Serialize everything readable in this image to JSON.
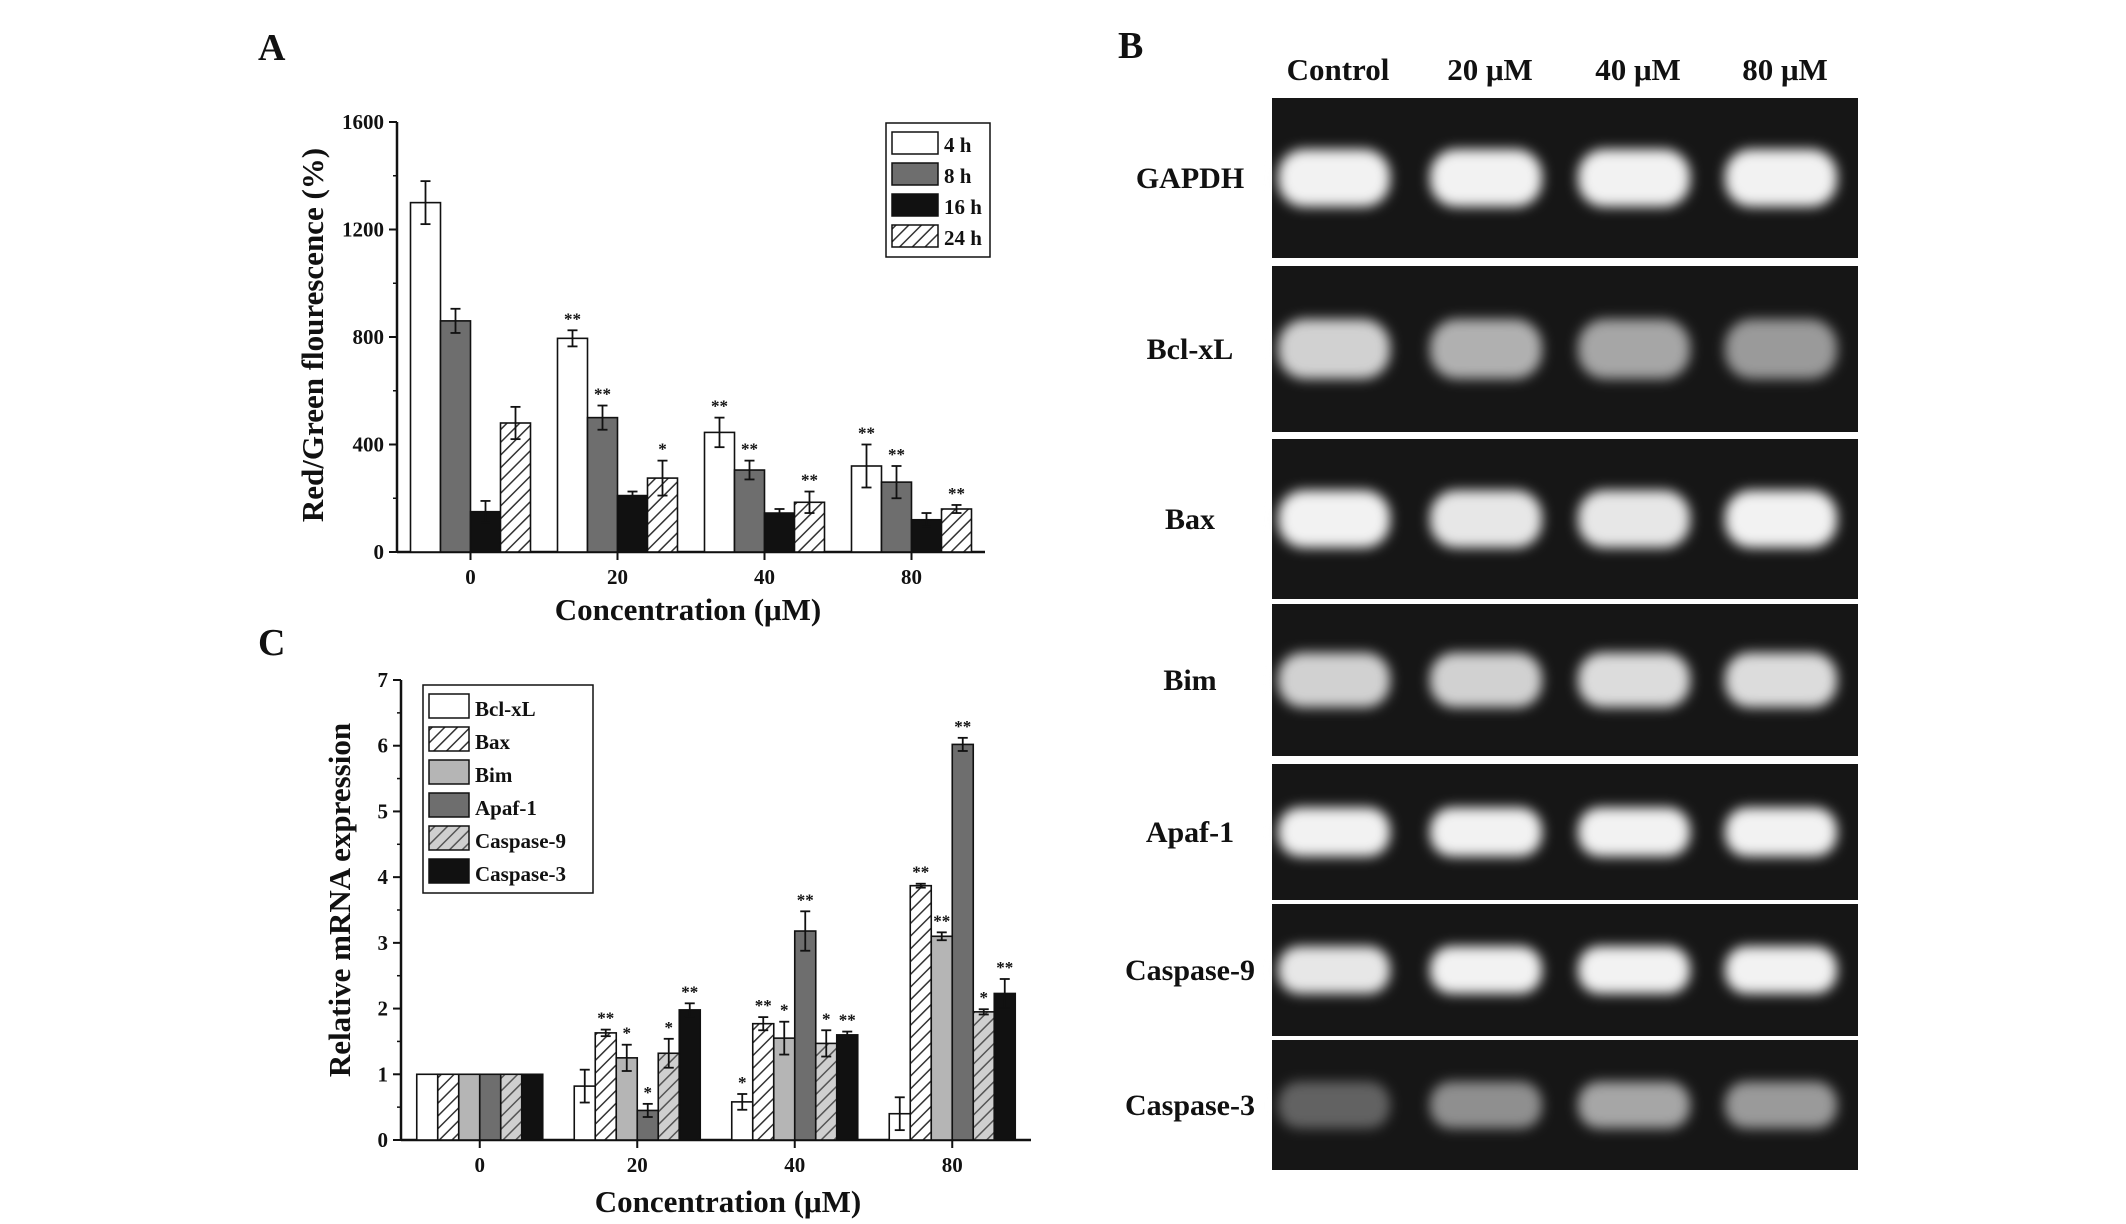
{
  "figure": {
    "panel_labels": {
      "a": "A",
      "b": "B",
      "c": "C"
    }
  },
  "colors": {
    "white_bar": "#ffffff",
    "dark_gray_bar": "#6e6e6e",
    "black_bar": "#111111",
    "light_gray_bar": "#b5b5b5",
    "hatch": "#333333",
    "gel_background": "#161616",
    "gel_band": "#f2f2f2"
  },
  "chart_data": [
    {
      "id": "panel-a",
      "type": "bar",
      "title": "",
      "xlabel": "Concentration (μM)",
      "ylabel": "Red/Green flourescence (%)",
      "ylim": [
        0,
        1600
      ],
      "yticks": [
        0,
        400,
        800,
        1200,
        1600
      ],
      "categories": [
        "0",
        "20",
        "40",
        "80"
      ],
      "legend_position": "top-right",
      "series": [
        {
          "name": "4 h",
          "fill": "white",
          "values": [
            1300,
            795,
            445,
            320
          ],
          "errors": [
            80,
            30,
            55,
            80
          ],
          "sig": [
            "",
            "**",
            "**",
            "**"
          ]
        },
        {
          "name": "8 h",
          "fill": "dark",
          "values": [
            860,
            500,
            305,
            260
          ],
          "errors": [
            45,
            45,
            35,
            60
          ],
          "sig": [
            "",
            "**",
            "**",
            "**"
          ]
        },
        {
          "name": "16 h",
          "fill": "black",
          "values": [
            150,
            210,
            145,
            120
          ],
          "errors": [
            40,
            15,
            15,
            25
          ],
          "sig": [
            "",
            "",
            "",
            ""
          ]
        },
        {
          "name": "24 h",
          "fill": "hatch",
          "values": [
            480,
            275,
            185,
            160
          ],
          "errors": [
            60,
            65,
            40,
            15
          ],
          "sig": [
            "",
            "*",
            "**",
            "**"
          ]
        }
      ]
    },
    {
      "id": "panel-c",
      "type": "bar",
      "title": "",
      "xlabel": "Concentration (μM)",
      "ylabel": "Relative mRNA expression",
      "ylim": [
        0,
        7
      ],
      "yticks": [
        0,
        1,
        2,
        3,
        4,
        5,
        6,
        7
      ],
      "categories": [
        "0",
        "20",
        "40",
        "80"
      ],
      "legend_position": "top-left",
      "series": [
        {
          "name": "Bcl-xL",
          "fill": "white",
          "values": [
            1,
            0.82,
            0.58,
            0.4
          ],
          "errors": [
            0,
            0.25,
            0.12,
            0.25
          ],
          "sig": [
            "",
            "",
            "*",
            ""
          ]
        },
        {
          "name": "Bax",
          "fill": "hatch",
          "values": [
            1,
            1.63,
            1.77,
            3.87
          ],
          "errors": [
            0,
            0.05,
            0.1,
            0.03
          ],
          "sig": [
            "",
            "**",
            "**",
            "**"
          ]
        },
        {
          "name": "Bim",
          "fill": "light",
          "values": [
            1,
            1.25,
            1.55,
            3.1
          ],
          "errors": [
            0,
            0.2,
            0.25,
            0.06
          ],
          "sig": [
            "",
            "*",
            "*",
            "**"
          ]
        },
        {
          "name": "Apaf-1",
          "fill": "dark",
          "values": [
            1,
            0.45,
            3.18,
            6.02
          ],
          "errors": [
            0,
            0.1,
            0.3,
            0.1
          ],
          "sig": [
            "",
            "*",
            "**",
            "**"
          ]
        },
        {
          "name": "Caspase-9",
          "fill": "hatch-light",
          "values": [
            1,
            1.32,
            1.47,
            1.95
          ],
          "errors": [
            0,
            0.22,
            0.2,
            0.04
          ],
          "sig": [
            "",
            "*",
            "*",
            "*"
          ]
        },
        {
          "name": "Caspase-3",
          "fill": "black",
          "values": [
            1,
            1.98,
            1.6,
            2.23
          ],
          "errors": [
            0,
            0.1,
            0.05,
            0.22
          ],
          "sig": [
            "",
            "**",
            "**",
            "**"
          ]
        }
      ]
    }
  ],
  "gel": {
    "columns": [
      "Control",
      "20 μM",
      "40 μM",
      "80 μM"
    ],
    "rows": [
      "GAPDH",
      "Bcl-xL",
      "Bax",
      "Bim",
      "Apaf-1",
      "Caspase-9",
      "Caspase-3"
    ],
    "band_intensity": [
      [
        1.0,
        1.0,
        1.0,
        1.0
      ],
      [
        0.85,
        0.7,
        0.65,
        0.6
      ],
      [
        1.0,
        0.95,
        0.95,
        1.0
      ],
      [
        0.85,
        0.85,
        0.9,
        0.9
      ],
      [
        1.0,
        1.0,
        1.0,
        1.0
      ],
      [
        0.95,
        1.0,
        1.0,
        1.0
      ],
      [
        0.35,
        0.55,
        0.65,
        0.6
      ]
    ]
  }
}
